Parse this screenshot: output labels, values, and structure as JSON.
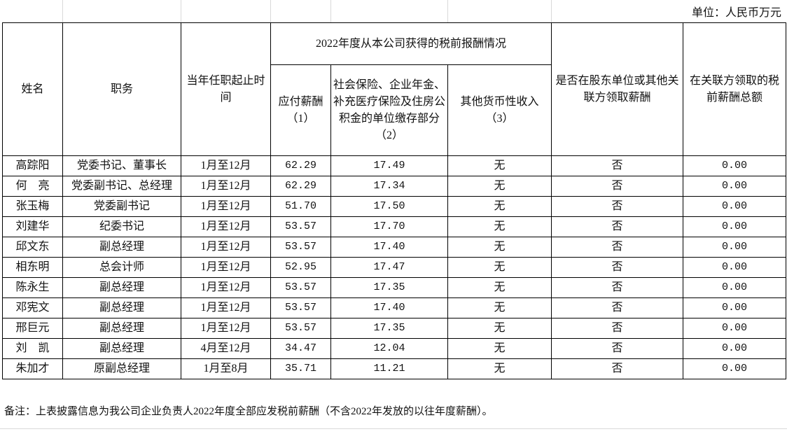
{
  "unit_label": "单位：人民币万元",
  "header": {
    "name": "姓名",
    "position": "职务",
    "tenure": "当年任职起止时间",
    "group": "2022年度从本公司获得的税前报酬情况",
    "salary": "应付薪酬（1）",
    "insurance": "社会保险、企业年金、补充医疗保险及住房公积金的单位缴存部分（2）",
    "other_income": "其他货币性收入（3）",
    "related_party": "是否在股东单位或其他关联方领取薪酬",
    "related_total": "在关联方领取的税前薪酬总额"
  },
  "rows": [
    {
      "name": "高踪阳",
      "position": "党委书记、董事长",
      "tenure": "1月至12月",
      "salary": "62.29",
      "insurance": "17.49",
      "other": "无",
      "related": "否",
      "total": "0.00"
    },
    {
      "name": "何　亮",
      "position": "党委副书记、总经理",
      "tenure": "1月至12月",
      "salary": "62.29",
      "insurance": "17.34",
      "other": "无",
      "related": "否",
      "total": "0.00"
    },
    {
      "name": "张玉梅",
      "position": "党委副书记",
      "tenure": "1月至12月",
      "salary": "51.70",
      "insurance": "17.50",
      "other": "无",
      "related": "否",
      "total": "0.00"
    },
    {
      "name": "刘建华",
      "position": "纪委书记",
      "tenure": "1月至12月",
      "salary": "53.57",
      "insurance": "17.70",
      "other": "无",
      "related": "否",
      "total": "0.00"
    },
    {
      "name": "邱文东",
      "position": "副总经理",
      "tenure": "1月至12月",
      "salary": "53.57",
      "insurance": "17.40",
      "other": "无",
      "related": "否",
      "total": "0.00"
    },
    {
      "name": "相东明",
      "position": "总会计师",
      "tenure": "1月至12月",
      "salary": "52.95",
      "insurance": "17.47",
      "other": "无",
      "related": "否",
      "total": "0.00"
    },
    {
      "name": "陈永生",
      "position": "副总经理",
      "tenure": "1月至12月",
      "salary": "53.57",
      "insurance": "17.35",
      "other": "无",
      "related": "否",
      "total": "0.00"
    },
    {
      "name": "邓宪文",
      "position": "副总经理",
      "tenure": "1月至12月",
      "salary": "53.57",
      "insurance": "17.40",
      "other": "无",
      "related": "否",
      "total": "0.00"
    },
    {
      "name": "邢巨元",
      "position": "副总经理",
      "tenure": "1月至12月",
      "salary": "53.57",
      "insurance": "17.35",
      "other": "无",
      "related": "否",
      "total": "0.00"
    },
    {
      "name": "刘　凯",
      "position": "副总经理",
      "tenure": "4月至12月",
      "salary": "34.47",
      "insurance": "12.04",
      "other": "无",
      "related": "否",
      "total": "0.00"
    },
    {
      "name": "朱加才",
      "position": "原副总经理",
      "tenure": "1月至8月",
      "salary": "35.71",
      "insurance": "11.21",
      "other": "无",
      "related": "否",
      "total": "0.00"
    }
  ],
  "note": "备注：上表披露信息为我公司企业负责人2022年度全部应发税前薪酬（不含2022年发放的以往年度薪酬）。"
}
